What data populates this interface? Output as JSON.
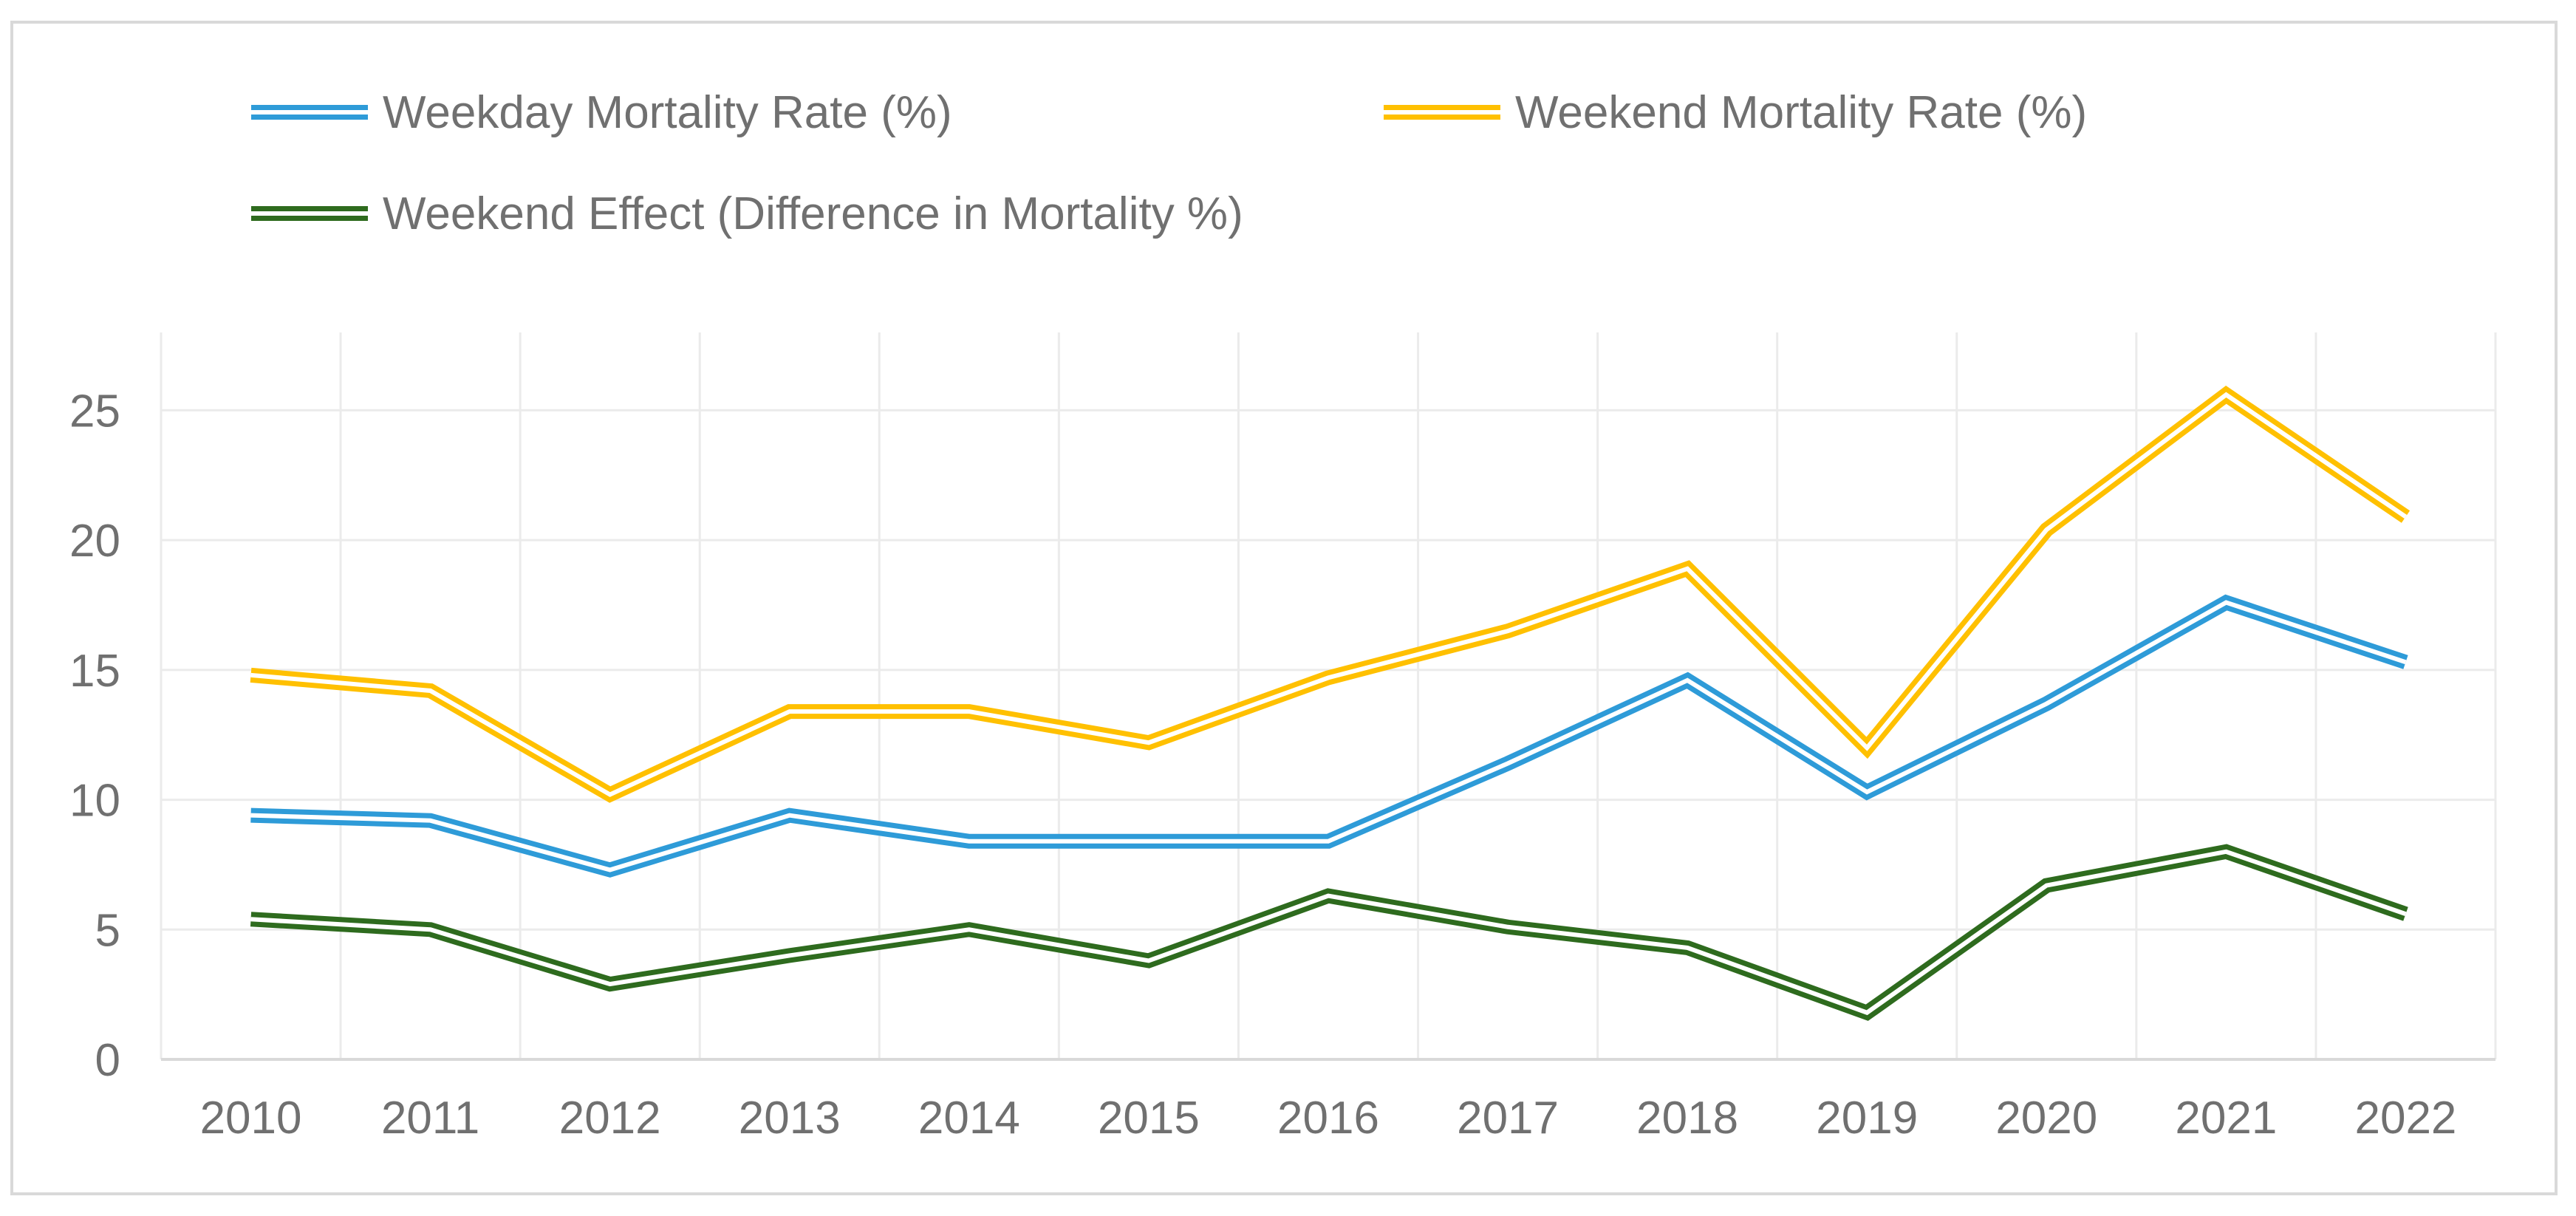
{
  "chart_data": {
    "type": "line",
    "title": "",
    "xlabel": "",
    "ylabel": "",
    "categories": [
      "2010",
      "2011",
      "2012",
      "2013",
      "2014",
      "2015",
      "2016",
      "2017",
      "2018",
      "2019",
      "2020",
      "2021",
      "2022"
    ],
    "ylim": [
      0,
      28
    ],
    "yticks": [
      0,
      5,
      10,
      15,
      20,
      25
    ],
    "grid": true,
    "legend_position": "top",
    "series": [
      {
        "name": "Weekday Mortality Rate (%)",
        "color": "#2E9BD8",
        "values": [
          9.4,
          9.2,
          7.3,
          9.4,
          8.4,
          8.4,
          8.4,
          11.4,
          14.6,
          10.3,
          13.7,
          17.6,
          15.3
        ]
      },
      {
        "name": "Weekend Mortality Rate (%)",
        "color": "#FFC000",
        "values": [
          14.8,
          14.2,
          10.2,
          13.4,
          13.4,
          12.2,
          14.7,
          16.5,
          18.9,
          12.0,
          20.4,
          25.6,
          20.9
        ]
      },
      {
        "name": "Weekend Effect (Difference in Mortality %)",
        "color": "#2E6B1E",
        "values": [
          5.4,
          5.0,
          2.9,
          4.0,
          5.0,
          3.8,
          6.3,
          5.1,
          4.3,
          1.8,
          6.7,
          8.0,
          5.6
        ]
      }
    ]
  }
}
